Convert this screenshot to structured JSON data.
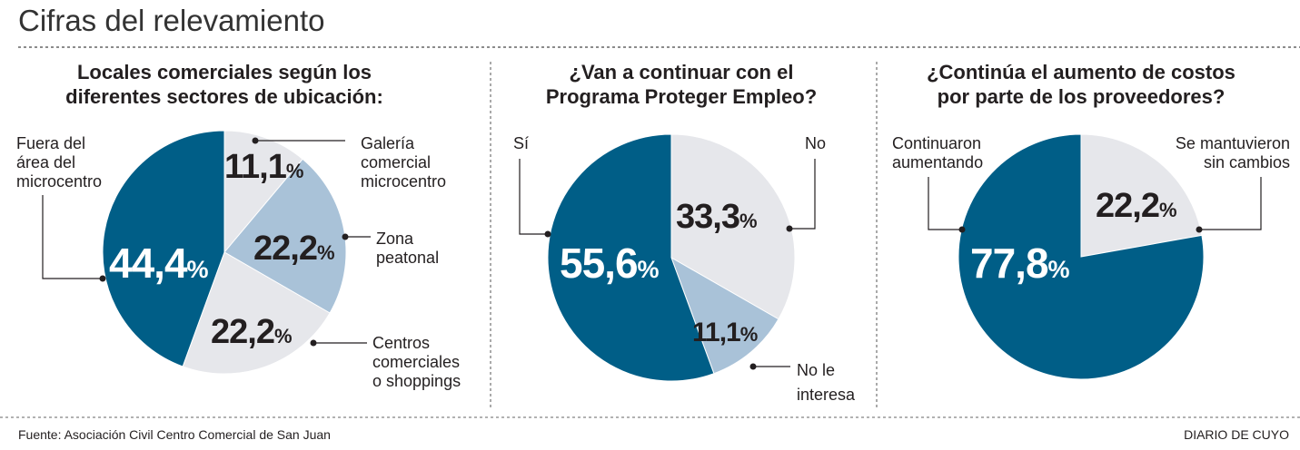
{
  "title": "Cifras del relevamiento",
  "footer": {
    "source": "Fuente: Asociación Civil Centro Comercial de San Juan",
    "brand": "DIARIO DE CUYO"
  },
  "colors": {
    "dark": "#005e87",
    "light_blue": "#a9c2d8",
    "gray": "#e6e7eb"
  },
  "chart_data": [
    {
      "type": "pie",
      "title_lines": [
        "Locales comerciales según los",
        "diferentes sectores de ubicación:"
      ],
      "slices": [
        {
          "label_lines": [
            "Galería",
            "comercial",
            "microcentro"
          ],
          "value": 11.1,
          "display": "11,1",
          "color": "gray"
        },
        {
          "label_lines": [
            "Zona",
            "peatonal"
          ],
          "value": 22.2,
          "display": "22,2",
          "color": "light_blue"
        },
        {
          "label_lines": [
            "Centros",
            "comerciales",
            "o shoppings"
          ],
          "value": 22.2,
          "display": "22,2",
          "color": "gray"
        },
        {
          "label_lines": [
            "Fuera del",
            "área del",
            "microcentro"
          ],
          "value": 44.4,
          "display": "44,4",
          "color": "dark"
        }
      ]
    },
    {
      "type": "pie",
      "title_lines": [
        "¿Van a continuar con el",
        "Programa Proteger Empleo?"
      ],
      "slices": [
        {
          "label_lines": [
            "No"
          ],
          "value": 33.3,
          "display": "33,3",
          "color": "gray"
        },
        {
          "label_lines": [
            "No le",
            "interesa"
          ],
          "value": 11.1,
          "display": "11,1",
          "color": "light_blue"
        },
        {
          "label_lines": [
            "Sí"
          ],
          "value": 55.6,
          "display": "55,6",
          "color": "dark"
        }
      ]
    },
    {
      "type": "pie",
      "title_lines": [
        "¿Continúa el aumento de costos",
        "por parte de los proveedores?"
      ],
      "slices": [
        {
          "label_lines": [
            "Se mantuvieron",
            "sin cambios"
          ],
          "value": 22.2,
          "display": "22,2",
          "color": "gray"
        },
        {
          "label_lines": [
            "Continuaron",
            "aumentando"
          ],
          "value": 77.8,
          "display": "77,8",
          "color": "dark"
        }
      ]
    }
  ],
  "percent_sign": "%"
}
